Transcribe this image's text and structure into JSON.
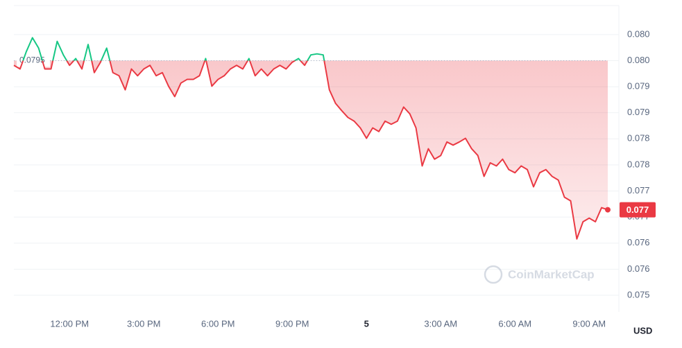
{
  "chart_data": {
    "type": "line",
    "categories": [
      null,
      null,
      null,
      null,
      null,
      null,
      null,
      null,
      null,
      "12:00 PM",
      null,
      null,
      null,
      null,
      null,
      null,
      null,
      null,
      null,
      null,
      null,
      "3:00 PM",
      null,
      null,
      null,
      null,
      null,
      null,
      null,
      null,
      null,
      null,
      null,
      "6:00 PM",
      null,
      null,
      null,
      null,
      null,
      null,
      null,
      null,
      null,
      null,
      null,
      "9:00 PM",
      null,
      null,
      null,
      null,
      null,
      null,
      null,
      null,
      null,
      null,
      null,
      "5",
      null,
      null,
      null,
      null,
      null,
      null,
      null,
      null,
      null,
      null,
      null,
      "3:00 AM",
      null,
      null,
      null,
      null,
      null,
      null,
      null,
      null,
      null,
      null,
      null,
      "6:00 AM",
      null,
      null,
      null,
      null,
      null,
      null,
      null,
      null,
      null,
      null,
      null,
      "9:00 AM",
      null,
      null,
      null
    ],
    "values": [
      0.07941,
      0.07934,
      0.07967,
      0.07994,
      0.07974,
      0.07934,
      0.07934,
      0.07987,
      0.07961,
      0.07941,
      0.07954,
      0.07934,
      0.07981,
      0.07927,
      0.07947,
      0.07974,
      0.07927,
      0.07921,
      0.07894,
      0.07934,
      0.07921,
      0.07934,
      0.07941,
      0.07921,
      0.07927,
      0.07901,
      0.07881,
      0.07907,
      0.07914,
      0.07914,
      0.07921,
      0.07954,
      0.07901,
      0.07914,
      0.07921,
      0.07934,
      0.07941,
      0.07934,
      0.07954,
      0.07921,
      0.07934,
      0.07921,
      0.07934,
      0.07941,
      0.07934,
      0.07947,
      0.07954,
      0.07941,
      0.07961,
      0.07963,
      0.07961,
      0.07894,
      0.07868,
      0.07854,
      0.07841,
      0.07834,
      0.07821,
      0.07801,
      0.07821,
      0.07814,
      0.07834,
      0.07828,
      0.07834,
      0.07861,
      0.07848,
      0.07821,
      0.07748,
      0.07781,
      0.07761,
      0.07768,
      0.07794,
      0.07788,
      0.07794,
      0.07801,
      0.07781,
      0.07768,
      0.07728,
      0.07754,
      0.07748,
      0.07761,
      0.07741,
      0.07735,
      0.07748,
      0.07741,
      0.07708,
      0.07735,
      0.07741,
      0.07728,
      0.07721,
      0.07688,
      0.07681,
      0.07608,
      0.07641,
      0.07648,
      0.07641,
      0.07668,
      0.07664
    ],
    "baseline": 0.0795,
    "up_color": "#16c784",
    "down_color": "#ea3943",
    "current_label": "0.077",
    "y_label": "USD",
    "watermark": "CoinMarketCap",
    "ylim": [
      0.07468,
      0.08053
    ],
    "yticks": [
      {
        "value": 0.075,
        "label": "0.075"
      },
      {
        "value": 0.0755,
        "label": "0.076"
      },
      {
        "value": 0.076,
        "label": "0.076"
      },
      {
        "value": 0.0765,
        "label": "0.077"
      },
      {
        "value": 0.077,
        "label": "0.077"
      },
      {
        "value": 0.0775,
        "label": "0.078"
      },
      {
        "value": 0.078,
        "label": "0.078"
      },
      {
        "value": 0.0785,
        "label": "0.079"
      },
      {
        "value": 0.079,
        "label": "0.079"
      },
      {
        "value": 0.0795,
        "label": "0.080"
      },
      {
        "value": 0.08,
        "label": "0.080"
      }
    ],
    "grid": true
  }
}
